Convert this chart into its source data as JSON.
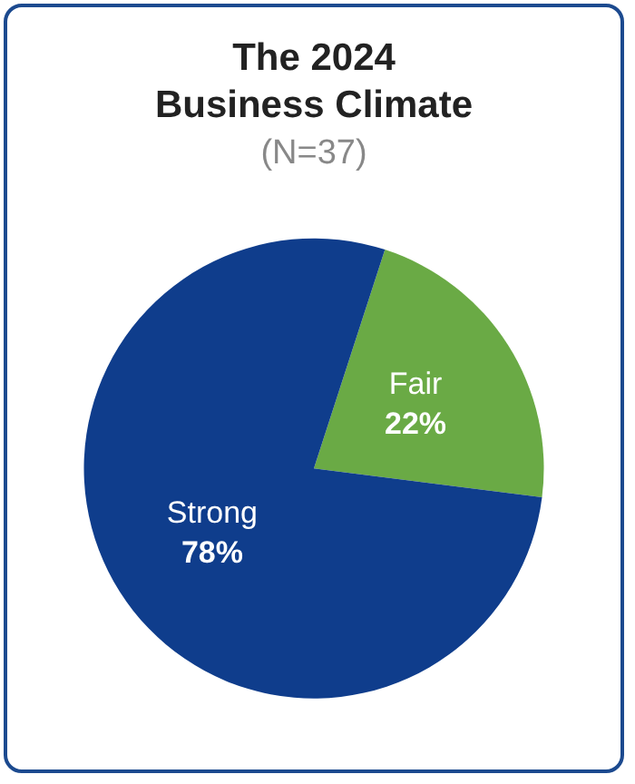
{
  "chart_data": {
    "type": "pie",
    "title": "The 2024\nBusiness Climate",
    "subtitle": "(N=37)",
    "categories": [
      "Fair",
      "Strong"
    ],
    "values": [
      22,
      78
    ],
    "value_labels": [
      "22%",
      "78%"
    ],
    "colors": [
      "#6aaa45",
      "#0f3d8c"
    ],
    "legend": false
  }
}
